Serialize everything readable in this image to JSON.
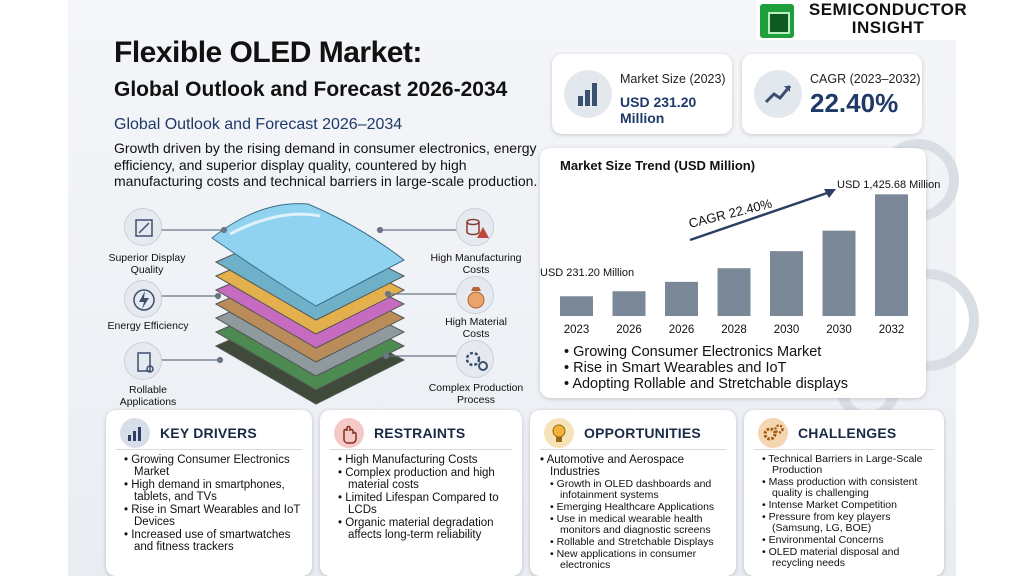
{
  "brand": {
    "name_line1": "SEMICONDUCTOR",
    "name_line2": "INSIGHT"
  },
  "header": {
    "title": "Flexible OLED Market:",
    "title_line2": "Global Outlook and Forecast 2026-2034",
    "subtitle": "Global Outlook and Forecast 2026–2034",
    "description": "Growth driven by the rising demand in consumer electronics, energy efficiency, and superior display quality, countered by high manufacturing costs and technical barriers in large-scale production."
  },
  "stats": {
    "market_size_label": "Market Size (2023)",
    "market_size_value": "USD 231.20 Million",
    "cagr_label": "CAGR (2023–2032)",
    "cagr_value": "22.40%"
  },
  "features": {
    "display": "Superior Display Quality",
    "energy": "Energy Efficiency",
    "rollable": "Rollable Applications",
    "mfg_costs": "High Manufacturing Costs",
    "material_costs": "High Material Costs",
    "complex": "Complex Production Process"
  },
  "chart_data": {
    "type": "bar",
    "title": "Market Size Trend (USD Million)",
    "categories": [
      "2023",
      "2026",
      "2026",
      "2028",
      "2030",
      "2030",
      "2032"
    ],
    "values": [
      231.2,
      290,
      400,
      560,
      760,
      1000,
      1425.68
    ],
    "ylim": [
      0,
      1500
    ],
    "grid": false,
    "annotations": {
      "start_label": "USD 231.20 Million",
      "end_label": "USD 1,425.68 Million",
      "cagr_label": "CAGR 22.40%"
    },
    "bar_color": "#7b8898"
  },
  "trend_bullets": [
    "Growing Consumer Electronics Market",
    "Rise in Smart Wearables and IoT",
    "Adopting Rollable and Stretchable displays"
  ],
  "panels": {
    "drivers": {
      "title": "KEY DRIVERS",
      "items": [
        "Growing Consumer Electronics Market",
        "High demand in smartphones, tablets, and TVs",
        "Rise in Smart Wearables and IoT Devices",
        "Increased use of smartwatches and fitness trackers"
      ]
    },
    "restraints": {
      "title": "RESTRAINTS",
      "items": [
        "High Manufacturing Costs",
        "Complex production and high material costs",
        "Limited Lifespan Compared to LCDs",
        "Organic material degradation affects long-term reliability"
      ]
    },
    "opportunities": {
      "title": "OPPORTUNITIES",
      "items": [
        "Automotive and Aerospace Industries",
        "Growth in OLED dashboards and infotainment systems",
        "Emerging Healthcare Applications",
        "Use in medical wearable health monitors and diagnostic screens",
        "Rollable and Stretchable Displays",
        "New applications in consumer electronics"
      ]
    },
    "challenges": {
      "title": "CHALLENGES",
      "items": [
        "Technical Barriers in Large-Scale Production",
        "Mass production with consistent quality is challenging",
        "Intense Market Competition",
        "Pressure from key players (Samsung, LG, BOE)",
        "Environmental Concerns",
        "OLED material disposal and recycling needs"
      ]
    }
  },
  "colors": {
    "navy": "#1f3a68",
    "drivers_accent": "#d7deea",
    "restraints_accent": "#f2c9c4",
    "opportunities_accent": "#f6e3b8",
    "challenges_accent": "#f4d6b0"
  }
}
